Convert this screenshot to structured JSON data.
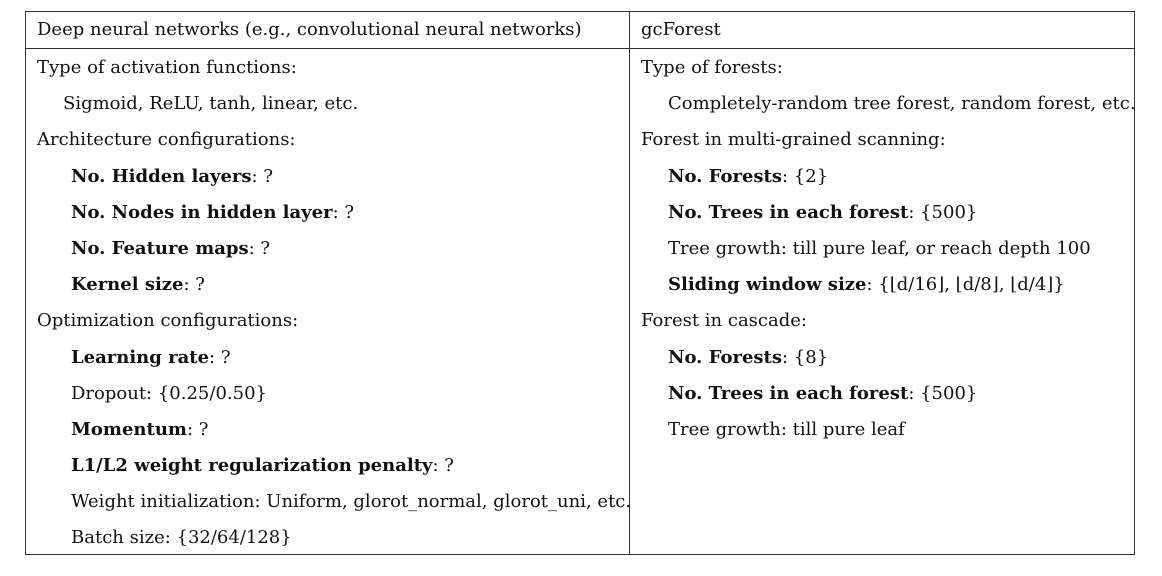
{
  "table": {
    "header_left": "Deep neural networks (e.g., convolutional neural networks)",
    "header_right": "gcForest",
    "left": {
      "activation_title": "Type of activation functions:",
      "activation_list": "Sigmoid, ReLU, tanh, linear, etc.",
      "arch_title": "Architecture configurations:",
      "hidden_layers_label": "No. Hidden layers",
      "hidden_layers_value": ": ?",
      "hidden_nodes_label": "No. Nodes in hidden layer",
      "hidden_nodes_value": ": ?",
      "feature_maps_label": "No. Feature maps",
      "feature_maps_value": ": ?",
      "kernel_label": "Kernel size",
      "kernel_value": ": ?",
      "opt_title": "Optimization configurations:",
      "lr_label": "Learning rate",
      "lr_value": ": ?",
      "dropout": "Dropout: {0.25/0.50}",
      "momentum_label": "Momentum",
      "momentum_value": ": ?",
      "l1l2_label": "L1/L2 weight regularization penalty",
      "l1l2_value": ": ?",
      "weight_init": "Weight initialization: Uniform, glorot_normal, glorot_uni, etc.",
      "batch": "Batch size: {32/64/128}"
    },
    "right": {
      "forest_type_title": "Type of forests:",
      "forest_type_list": "Completely-random tree forest, random forest, etc.",
      "mgs_title": "Forest in multi-grained scanning:",
      "mgs_forests_label": "No. Forests",
      "mgs_forests_value": ": {2}",
      "mgs_trees_label": "No. Trees in each forest",
      "mgs_trees_value": ": {500}",
      "mgs_growth": "Tree growth: till pure leaf, or reach depth 100",
      "sliding_label": "Sliding window size",
      "sliding_value": ": {⌊d/16⌋, ⌊d/8⌋, ⌊d/4⌋}",
      "cascade_title": "Forest in cascade:",
      "cascade_forests_label": "No. Forests",
      "cascade_forests_value": ": {8}",
      "cascade_trees_label": "No. Trees in each forest",
      "cascade_trees_value": ": {500}",
      "cascade_growth": "Tree growth: till pure leaf"
    }
  }
}
